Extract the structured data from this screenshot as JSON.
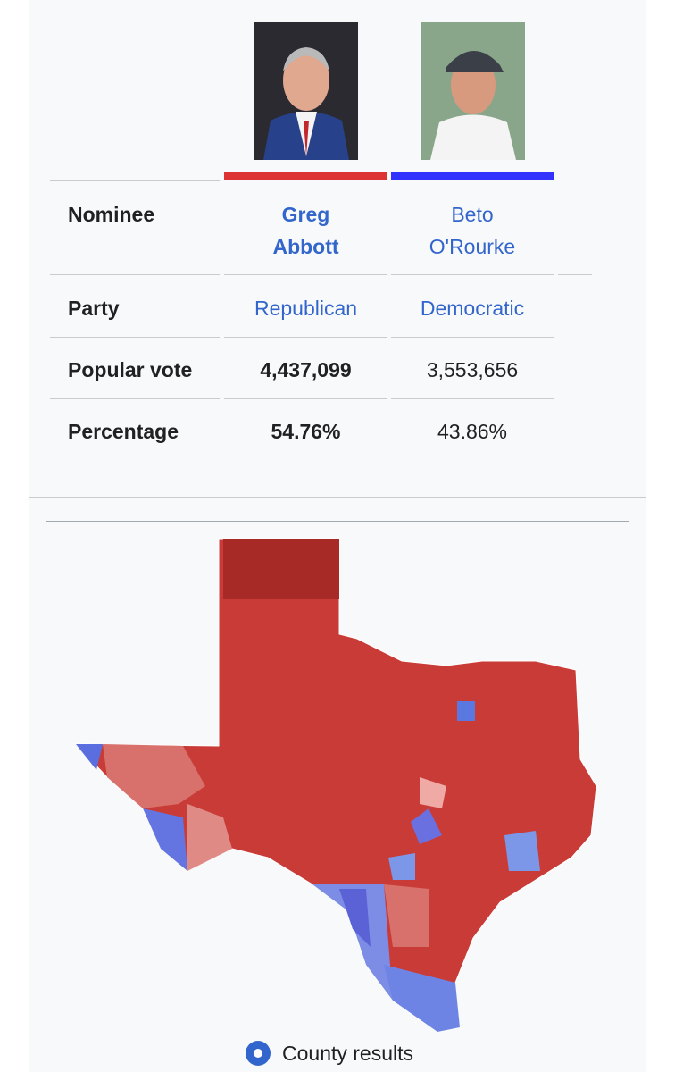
{
  "row_labels": {
    "nominee": "Nominee",
    "party": "Party",
    "popular_vote": "Popular vote",
    "percentage": "Percentage"
  },
  "candidates": [
    {
      "name": "Greg Abbott",
      "party": "Republican",
      "popular_vote": "4,437,099",
      "percentage": "54.76%",
      "color": "#d33"
    },
    {
      "name": "Beto O'Rourke",
      "party": "Democratic",
      "popular_vote": "3,553,656",
      "percentage": "43.86%",
      "color": "#3333ff"
    }
  ],
  "map": {
    "legend": "County results"
  }
}
